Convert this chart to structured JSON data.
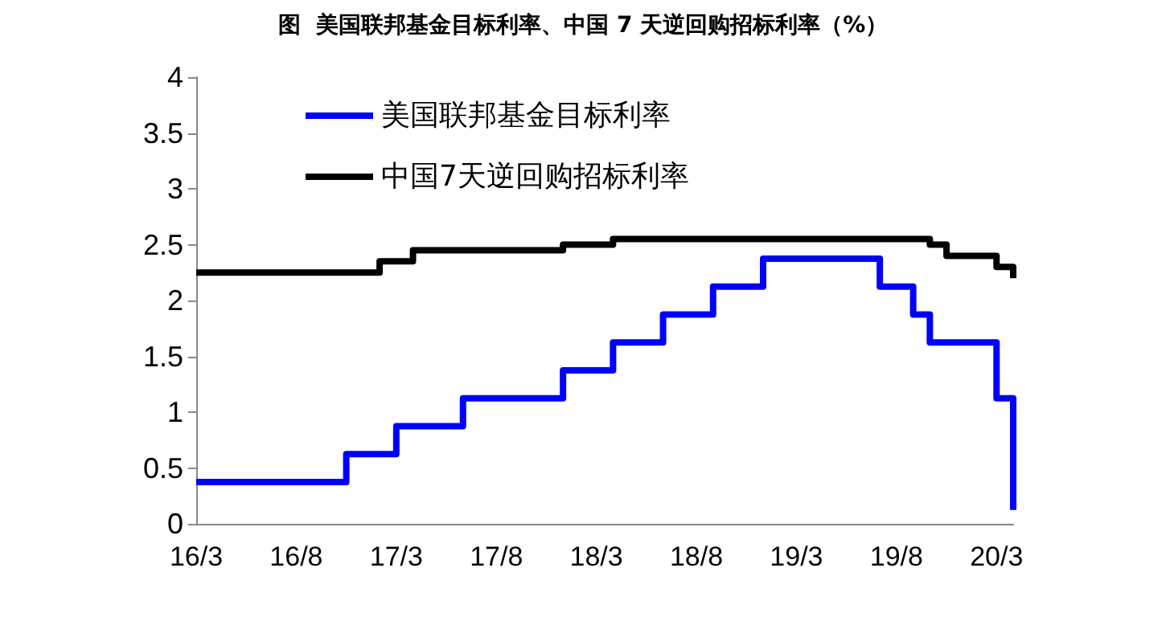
{
  "chart_data": {
    "type": "step",
    "title": "图  美国联邦基金目标利率、中国 7 天逆回购招标利率（%）",
    "categories": [
      "16/3",
      null,
      null,
      null,
      null,
      null,
      "16/8",
      null,
      null,
      null,
      null,
      null,
      "17/3",
      null,
      null,
      null,
      null,
      null,
      "17/8",
      null,
      null,
      null,
      null,
      null,
      "18/3",
      null,
      null,
      null,
      null,
      null,
      "18/8",
      null,
      null,
      null,
      null,
      null,
      "19/3",
      null,
      null,
      null,
      null,
      null,
      "19/8",
      null,
      null,
      null,
      null,
      null,
      "20/3",
      null
    ],
    "series": [
      {
        "name": "美国联邦基金目标利率",
        "color": "#0000ff",
        "values": [
          0.375,
          0.375,
          0.375,
          0.375,
          0.375,
          0.375,
          0.375,
          0.375,
          0.375,
          0.625,
          0.625,
          0.625,
          0.875,
          0.875,
          0.875,
          0.875,
          1.125,
          1.125,
          1.125,
          1.125,
          1.125,
          1.125,
          1.375,
          1.375,
          1.375,
          1.625,
          1.625,
          1.625,
          1.875,
          1.875,
          1.875,
          2.125,
          2.125,
          2.125,
          2.375,
          2.375,
          2.375,
          2.375,
          2.375,
          2.375,
          2.375,
          2.125,
          2.125,
          1.875,
          1.625,
          1.625,
          1.625,
          1.625,
          1.125,
          0.125
        ]
      },
      {
        "name": "中国7天逆回购招标利率",
        "color": "#000000",
        "values": [
          2.25,
          2.25,
          2.25,
          2.25,
          2.25,
          2.25,
          2.25,
          2.25,
          2.25,
          2.25,
          2.25,
          2.35,
          2.35,
          2.45,
          2.45,
          2.45,
          2.45,
          2.45,
          2.45,
          2.45,
          2.45,
          2.45,
          2.5,
          2.5,
          2.5,
          2.55,
          2.55,
          2.55,
          2.55,
          2.55,
          2.55,
          2.55,
          2.55,
          2.55,
          2.55,
          2.55,
          2.55,
          2.55,
          2.55,
          2.55,
          2.55,
          2.55,
          2.55,
          2.55,
          2.5,
          2.4,
          2.4,
          2.4,
          2.3,
          2.2
        ]
      }
    ],
    "ylim": [
      0,
      4
    ],
    "yticks": [
      0,
      0.5,
      1,
      1.5,
      2,
      2.5,
      3,
      3.5,
      4
    ],
    "grid": false,
    "legend": "top left",
    "marker": "none",
    "line_style": "solid"
  }
}
